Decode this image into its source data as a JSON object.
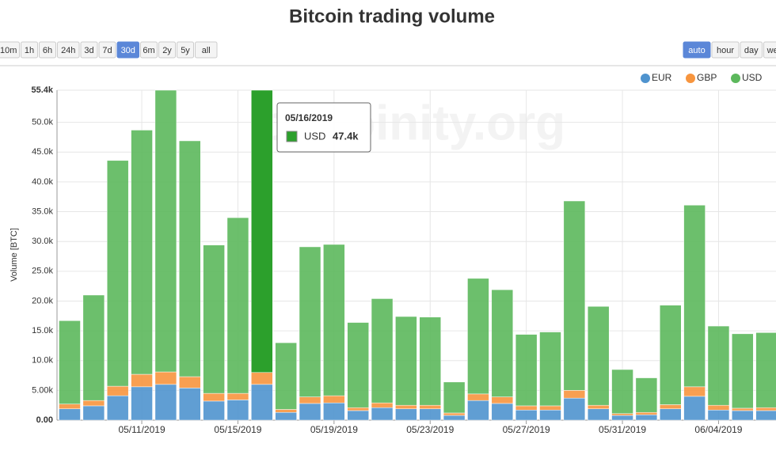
{
  "chart_data": {
    "type": "stacked-bar",
    "title": "Bitcoin trading volume",
    "y_label": "Volume [BTC]",
    "watermark": "bitcoinity.org",
    "range_buttons": [
      {
        "label": "10m",
        "active": false
      },
      {
        "label": "1h",
        "active": false
      },
      {
        "label": "6h",
        "active": false
      },
      {
        "label": "24h",
        "active": false
      },
      {
        "label": "3d",
        "active": false
      },
      {
        "label": "7d",
        "active": false
      },
      {
        "label": "30d",
        "active": true
      },
      {
        "label": "6m",
        "active": false
      },
      {
        "label": "2y",
        "active": false
      },
      {
        "label": "5y",
        "active": false
      },
      {
        "label": "all",
        "active": false
      }
    ],
    "interval_buttons": [
      {
        "label": "auto",
        "active": true
      },
      {
        "label": "hour",
        "active": false
      },
      {
        "label": "day",
        "active": false
      },
      {
        "label": "week",
        "active": false
      }
    ],
    "x": [
      "05/08/2019",
      "05/09/2019",
      "05/10/2019",
      "05/11/2019",
      "05/12/2019",
      "05/13/2019",
      "05/14/2019",
      "05/15/2019",
      "05/16/2019",
      "05/17/2019",
      "05/18/2019",
      "05/19/2019",
      "05/20/2019",
      "05/21/2019",
      "05/22/2019",
      "05/23/2019",
      "05/24/2019",
      "05/25/2019",
      "05/26/2019",
      "05/27/2019",
      "05/28/2019",
      "05/29/2019",
      "05/30/2019",
      "05/31/2019",
      "06/01/2019",
      "06/02/2019",
      "06/03/2019",
      "06/04/2019",
      "06/05/2019",
      "06/06/2019"
    ],
    "xticks": [
      "05/11/2019",
      "05/15/2019",
      "05/19/2019",
      "05/23/2019",
      "05/27/2019",
      "05/31/2019",
      "06/04/2019"
    ],
    "ylim": [
      0,
      55400
    ],
    "yticks": [
      {
        "value": 0,
        "label": "0.00"
      },
      {
        "value": 5000,
        "label": "5.00k"
      },
      {
        "value": 10000,
        "label": "10.0k"
      },
      {
        "value": 15000,
        "label": "15.0k"
      },
      {
        "value": 20000,
        "label": "20.0k"
      },
      {
        "value": 25000,
        "label": "25.0k"
      },
      {
        "value": 30000,
        "label": "30.0k"
      },
      {
        "value": 35000,
        "label": "35.0k"
      },
      {
        "value": 40000,
        "label": "40.0k"
      },
      {
        "value": 45000,
        "label": "45.0k"
      },
      {
        "value": 50000,
        "label": "50.0k"
      },
      {
        "value": 55400,
        "label": "55.4k"
      }
    ],
    "grid": true,
    "legend": "top-right",
    "series": [
      {
        "name": "EUR",
        "color": "#4f93ce",
        "values": [
          1900,
          2400,
          4100,
          5600,
          6000,
          5400,
          3200,
          3400,
          6000,
          1300,
          2800,
          2900,
          1600,
          2100,
          1900,
          1900,
          800,
          3300,
          2800,
          1700,
          1700,
          3700,
          1900,
          800,
          900,
          1900,
          4000,
          1700,
          1600,
          1600
        ]
      },
      {
        "name": "GBP",
        "color": "#f7953e",
        "values": [
          800,
          900,
          1600,
          2100,
          2100,
          1900,
          1300,
          1100,
          2000,
          500,
          1100,
          1200,
          500,
          800,
          600,
          600,
          400,
          1100,
          1100,
          700,
          700,
          1300,
          600,
          300,
          400,
          700,
          1600,
          800,
          400,
          500
        ]
      },
      {
        "name": "USD",
        "color": "#5cb85c",
        "values": [
          14000,
          17700,
          37900,
          41000,
          47300,
          39600,
          24900,
          29500,
          47400,
          11200,
          25200,
          25400,
          14300,
          17500,
          14900,
          14800,
          5200,
          19400,
          18000,
          12000,
          12400,
          31800,
          16600,
          7400,
          5800,
          16700,
          30500,
          13300,
          12500,
          12600
        ]
      }
    ],
    "tooltip": {
      "title": "05/16/2019",
      "name": "USD",
      "value_label": "47.4k",
      "color": "#2ca02c"
    }
  }
}
